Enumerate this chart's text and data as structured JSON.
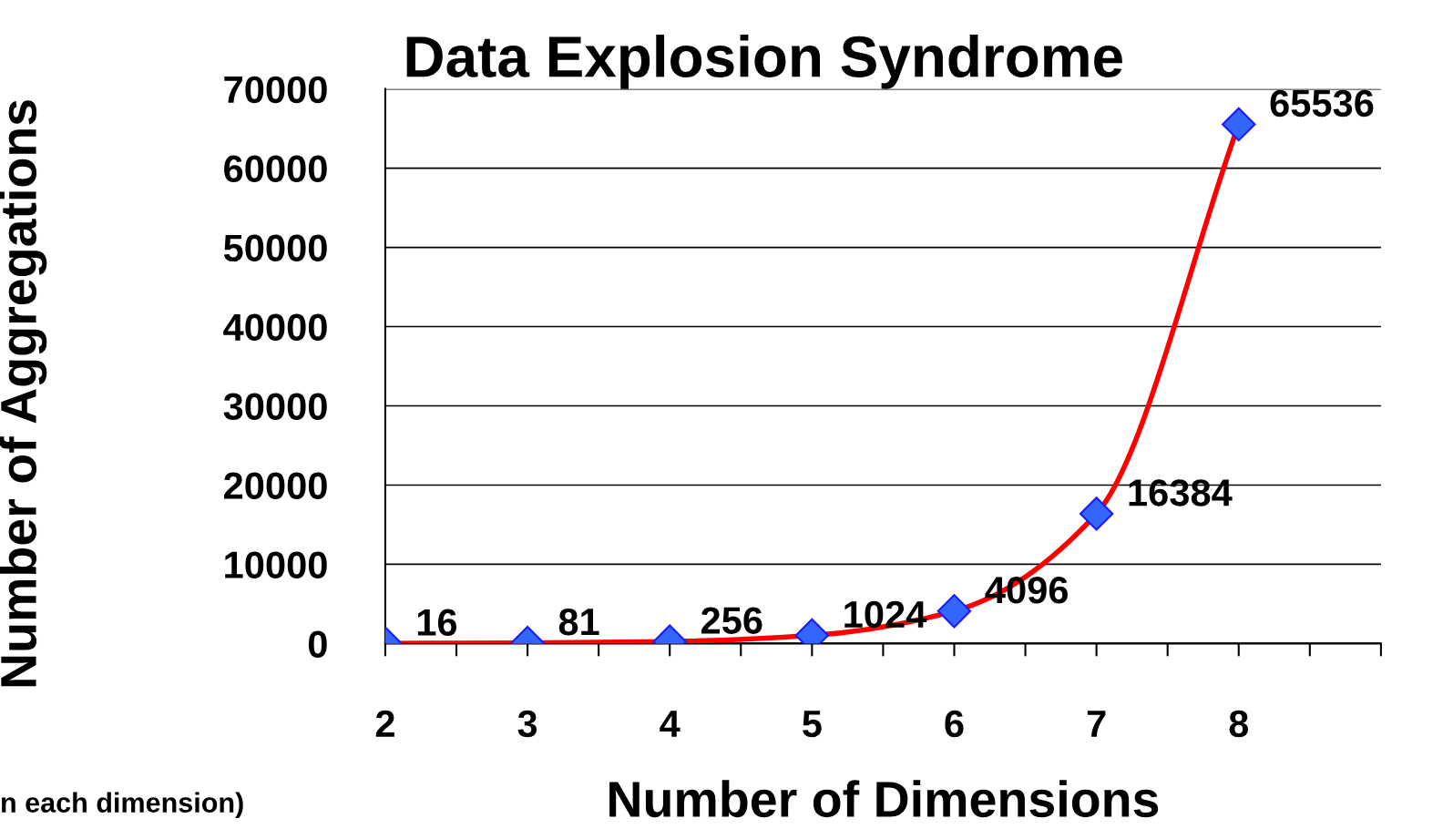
{
  "chart_data": {
    "type": "line",
    "title": "Data Explosion Syndrome",
    "xlabel": "Number of Dimensions",
    "ylabel": "Number of Aggregations",
    "x": [
      2,
      3,
      4,
      5,
      6,
      7,
      8
    ],
    "series": [
      {
        "color": "#ff0000",
        "marker": "none",
        "values": [
          16,
          81,
          256,
          1024,
          4096,
          16384,
          65536
        ],
        "value_labels": [
          "16",
          "81",
          "256",
          "1024",
          "4096",
          "16384",
          "65536"
        ]
      },
      {
        "type": "scatter",
        "color": "#3366ff",
        "values": [
          16,
          81,
          256,
          1024,
          4096,
          16384,
          65536
        ]
      }
    ],
    "xlim": [
      2,
      9
    ],
    "xticks": [
      2,
      {
        "value": 2.5,
        "label": null
      },
      3,
      {
        "value": 3.5,
        "label": null
      },
      4,
      {
        "value": 4.5,
        "label": null
      },
      5,
      {
        "value": 5.5,
        "label": null
      },
      6,
      {
        "value": 6.5,
        "label": null
      },
      7,
      {
        "value": 7.5,
        "label": null
      },
      8,
      {
        "value": 8.5,
        "label": null
      },
      {
        "value": 9,
        "label": null
      }
    ],
    "ylim": [
      0,
      70000
    ],
    "yticks": [
      0,
      10000,
      20000,
      30000,
      40000,
      50000,
      60000,
      70000
    ],
    "grid": "y",
    "marker": "diamond",
    "line_style": "solid",
    "annotations": [
      "n each dimension)"
    ]
  }
}
